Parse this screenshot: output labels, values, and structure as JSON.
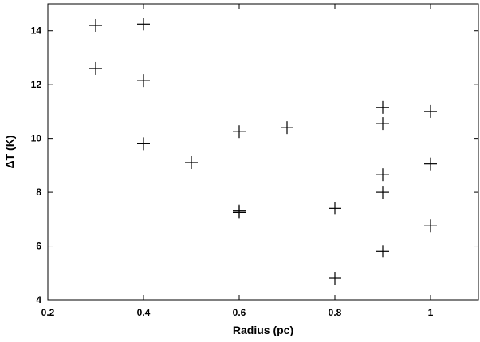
{
  "chart_data": {
    "type": "scatter",
    "title": "",
    "xlabel": "Radius (pc)",
    "ylabel": "ΔT (K)",
    "xlim": [
      0.2,
      1.1
    ],
    "ylim": [
      4,
      15
    ],
    "xticks": [
      0.2,
      0.4,
      0.6,
      0.8,
      1
    ],
    "xtick_labels": [
      "0.2",
      "0.4",
      "0.6",
      "0.8",
      "1"
    ],
    "yticks": [
      4,
      6,
      8,
      10,
      12,
      14
    ],
    "ytick_labels": [
      "4",
      "6",
      "8",
      "10",
      "12",
      "14"
    ],
    "grid": false,
    "marker": "plus",
    "points": [
      {
        "x": 0.3,
        "y": 14.2
      },
      {
        "x": 0.3,
        "y": 12.6
      },
      {
        "x": 0.4,
        "y": 14.25
      },
      {
        "x": 0.4,
        "y": 12.15
      },
      {
        "x": 0.4,
        "y": 9.8
      },
      {
        "x": 0.5,
        "y": 9.1
      },
      {
        "x": 0.6,
        "y": 10.25
      },
      {
        "x": 0.6,
        "y": 7.3
      },
      {
        "x": 0.6,
        "y": 7.25
      },
      {
        "x": 0.7,
        "y": 10.4
      },
      {
        "x": 0.8,
        "y": 7.4
      },
      {
        "x": 0.8,
        "y": 4.8
      },
      {
        "x": 0.9,
        "y": 11.15
      },
      {
        "x": 0.9,
        "y": 10.55
      },
      {
        "x": 0.9,
        "y": 8.65
      },
      {
        "x": 0.9,
        "y": 8.0
      },
      {
        "x": 0.9,
        "y": 5.8
      },
      {
        "x": 1.0,
        "y": 11.0
      },
      {
        "x": 1.0,
        "y": 9.05
      },
      {
        "x": 1.0,
        "y": 6.75
      }
    ]
  }
}
